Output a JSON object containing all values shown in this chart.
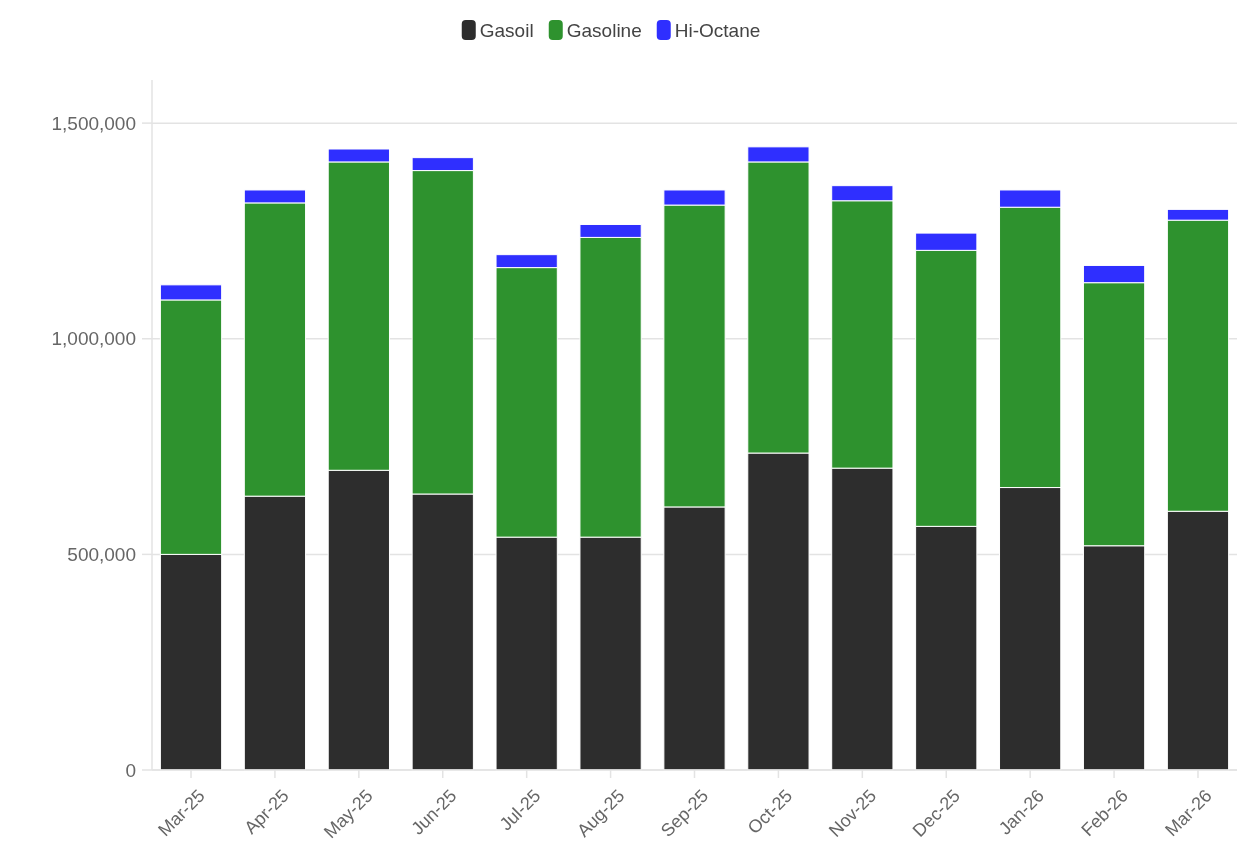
{
  "chart_data": {
    "type": "bar",
    "stacked": true,
    "legend": "top",
    "grid": "y",
    "categories": [
      "Mar-25",
      "Apr-25",
      "May-25",
      "Jun-25",
      "Jul-25",
      "Aug-25",
      "Sep-25",
      "Oct-25",
      "Nov-25",
      "Dec-25",
      "Jan-26",
      "Feb-26",
      "Mar-26"
    ],
    "series": [
      {
        "name": "Gasoil",
        "color": "#2d2d2d",
        "values": [
          500000,
          635000,
          695000,
          640000,
          540000,
          540000,
          610000,
          735000,
          700000,
          565000,
          655000,
          520000,
          600000
        ]
      },
      {
        "name": "Gasoline",
        "color": "#2e922e",
        "values": [
          590000,
          680000,
          715000,
          750000,
          625000,
          695000,
          700000,
          675000,
          620000,
          640000,
          650000,
          610000,
          675000
        ]
      },
      {
        "name": "Hi-Octane",
        "color": "#2f2fff",
        "values": [
          35000,
          30000,
          30000,
          30000,
          30000,
          30000,
          35000,
          35000,
          35000,
          40000,
          40000,
          40000,
          25000
        ]
      }
    ],
    "ylim": [
      0,
      1600000
    ],
    "yticks": [
      {
        "value": 0,
        "label": "0"
      },
      {
        "value": 500000,
        "label": "500,000"
      },
      {
        "value": 1000000,
        "label": "1,000,000"
      },
      {
        "value": 1500000,
        "label": "1,500,000"
      }
    ]
  }
}
